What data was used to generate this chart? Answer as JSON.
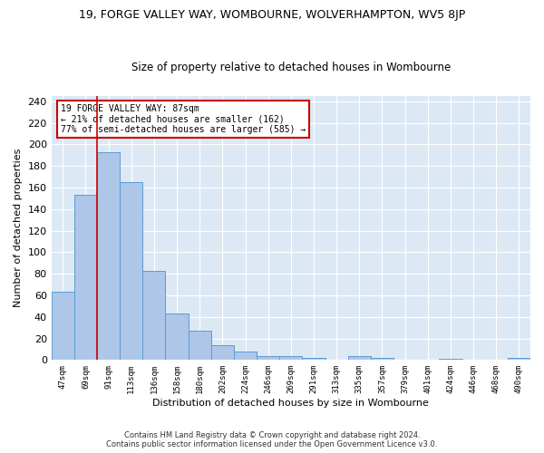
{
  "title_line1": "19, FORGE VALLEY WAY, WOMBOURNE, WOLVERHAMPTON, WV5 8JP",
  "title_line2": "Size of property relative to detached houses in Wombourne",
  "xlabel": "Distribution of detached houses by size in Wombourne",
  "ylabel": "Number of detached properties",
  "footer_line1": "Contains HM Land Registry data © Crown copyright and database right 2024.",
  "footer_line2": "Contains public sector information licensed under the Open Government Licence v3.0.",
  "categories": [
    "47sqm",
    "69sqm",
    "91sqm",
    "113sqm",
    "136sqm",
    "158sqm",
    "180sqm",
    "202sqm",
    "224sqm",
    "246sqm",
    "269sqm",
    "291sqm",
    "313sqm",
    "335sqm",
    "357sqm",
    "379sqm",
    "401sqm",
    "424sqm",
    "446sqm",
    "468sqm",
    "490sqm"
  ],
  "values": [
    63,
    153,
    193,
    165,
    83,
    43,
    27,
    14,
    8,
    4,
    4,
    2,
    0,
    4,
    2,
    0,
    0,
    1,
    0,
    0,
    2
  ],
  "bar_color": "#aec6e8",
  "bar_edge_color": "#5b9bd5",
  "vline_x_index": 1.5,
  "annotation_text": "19 FORGE VALLEY WAY: 87sqm\n← 21% of detached houses are smaller (162)\n77% of semi-detached houses are larger (585) →",
  "annotation_box_color": "#ffffff",
  "annotation_box_edge": "#cc0000",
  "vline_color": "#cc0000",
  "ylim": [
    0,
    245
  ],
  "yticks": [
    0,
    20,
    40,
    60,
    80,
    100,
    120,
    140,
    160,
    180,
    200,
    220,
    240
  ],
  "bg_color": "#dce9f5",
  "grid_color": "#ffffff",
  "title1_fontsize": 9,
  "title2_fontsize": 8.5
}
